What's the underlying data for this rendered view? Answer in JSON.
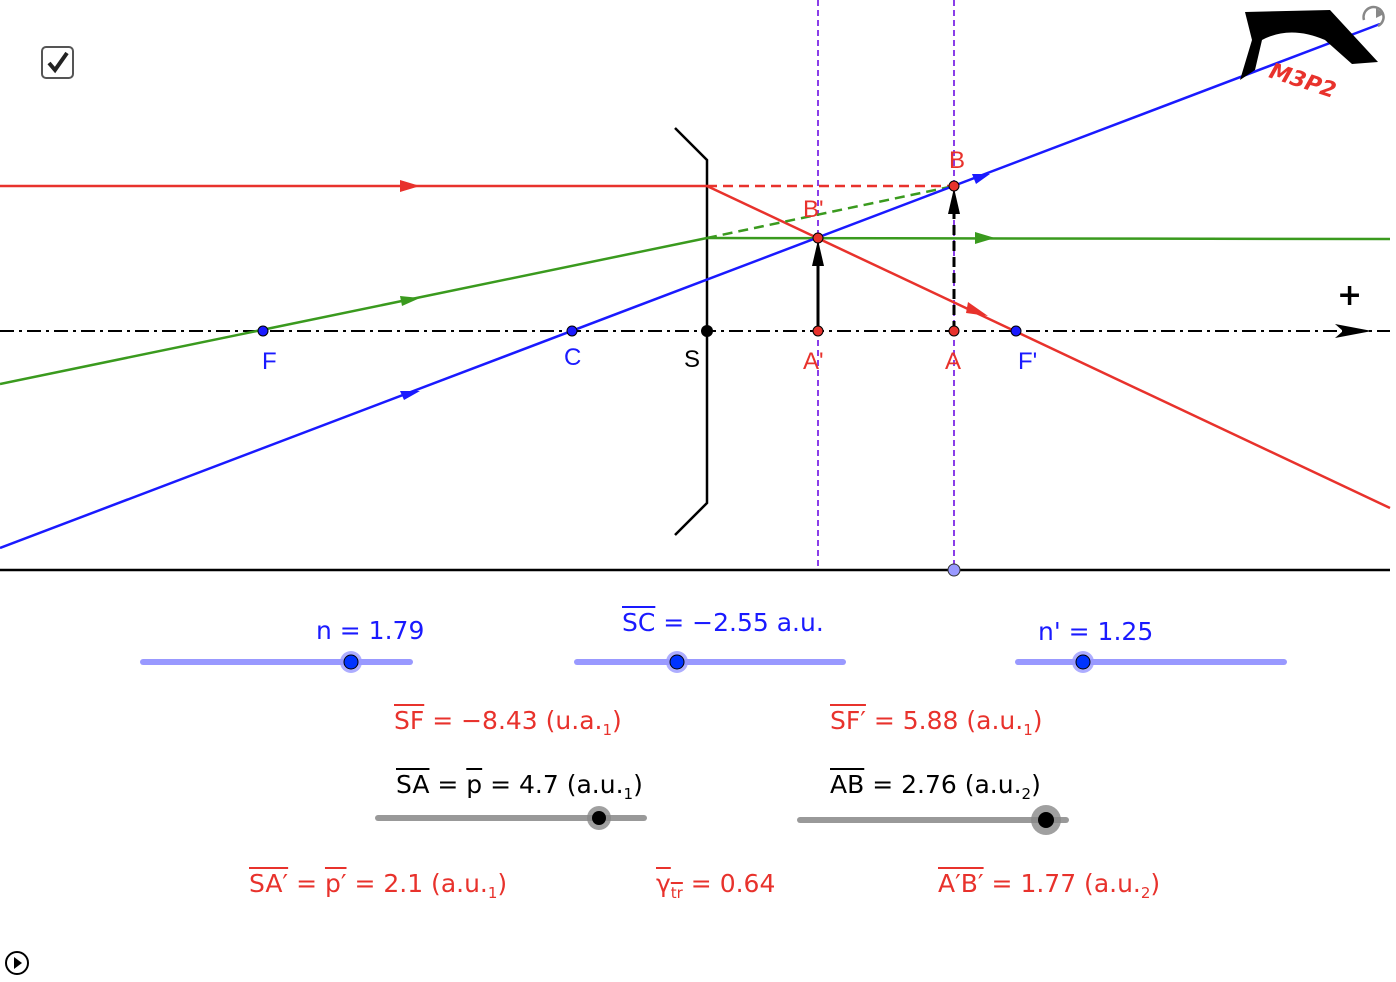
{
  "app": {
    "checkbox_checked": true,
    "logo_text": "M3P2",
    "icons": [
      "check-icon",
      "refresh-icon",
      "play-icon",
      "graduation-cap-logo"
    ]
  },
  "points": {
    "F": "F",
    "C": "C",
    "S": "S",
    "A_prime": "A'",
    "A": "A",
    "F_prime": "F'",
    "B": "B",
    "B_prime": "B'",
    "axis_direction": "+"
  },
  "colors": {
    "ray_red": "#e8322c",
    "ray_green": "#3a9a1e",
    "ray_blue": "#1a1aff",
    "guide_purple": "#8a3ee8",
    "slider_blue": "#9999ff",
    "slider_gray": "#999999"
  },
  "sliders": {
    "n": {
      "label": "n = 1.79",
      "value": 1.79
    },
    "sc": {
      "name": "SC",
      "rest": " = −2.55 a.u.",
      "value": -2.55
    },
    "n_prime": {
      "label": "n' = 1.25",
      "value": 1.25
    },
    "sa": {
      "name": "SA",
      "eq": " = ",
      "p": "p",
      "rest": " = 4.7 (a.u.",
      "sub": "1",
      "close": ")",
      "value": 4.7
    },
    "ab": {
      "name": "AB",
      "rest": " =  2.76 (a.u.",
      "sub": "2",
      "close": ")",
      "value": 2.76
    }
  },
  "results": {
    "sf": {
      "name": "SF",
      "rest": " = −8.43 (u.a.",
      "sub": "1",
      "close": ")"
    },
    "sf_prime": {
      "name": "SF′",
      "rest": " = 5.88 (a.u.",
      "sub": "1",
      "close": ")"
    },
    "sa_prime": {
      "name": "SA′",
      "eq": " = ",
      "p": "p′",
      "rest": " = 2.1 (a.u.",
      "sub": "1",
      "close": ")"
    },
    "gamma": {
      "name": "γ",
      "sub": "tr",
      "rest": " = 0.64"
    },
    "ab_prime": {
      "name": "A′B′",
      "rest": " = 1.77 (a.u.",
      "sub": "2",
      "close": ")"
    }
  }
}
